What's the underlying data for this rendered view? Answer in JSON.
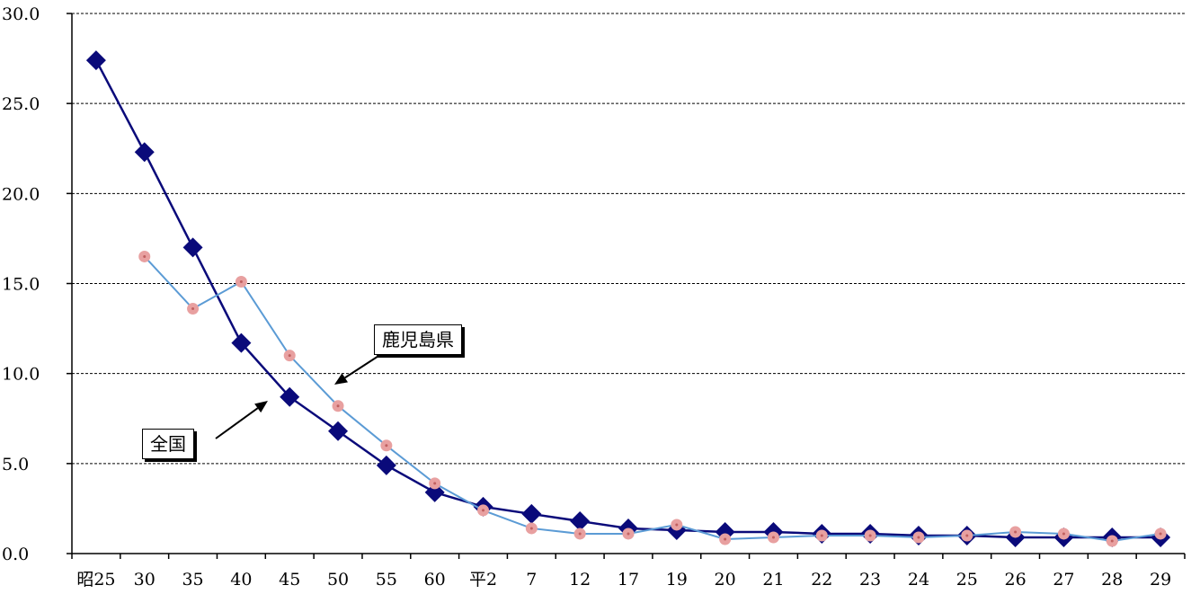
{
  "chart_data": {
    "type": "line",
    "categories": [
      "昭25",
      "30",
      "35",
      "40",
      "45",
      "50",
      "55",
      "60",
      "平2",
      "7",
      "12",
      "17",
      "19",
      "20",
      "21",
      "22",
      "23",
      "24",
      "25",
      "26",
      "27",
      "28",
      "29"
    ],
    "ylim": [
      0,
      30
    ],
    "yticks": [
      "0.0",
      "5.0",
      "10.0",
      "15.0",
      "20.0",
      "25.0",
      "30.0"
    ],
    "grid": "horizontal dashed",
    "series": [
      {
        "name": "全国",
        "color": "#0a0a7a",
        "marker": "diamond",
        "values": [
          27.4,
          22.3,
          17.0,
          11.7,
          8.7,
          6.8,
          4.9,
          3.4,
          2.6,
          2.2,
          1.8,
          1.4,
          1.3,
          1.2,
          1.2,
          1.1,
          1.1,
          1.0,
          1.0,
          0.9,
          0.9,
          0.9,
          0.9
        ]
      },
      {
        "name": "鹿児島県",
        "color": "#5b9bd5",
        "marker": "circle",
        "marker_color": "#e8a0a0",
        "values": [
          null,
          16.5,
          13.6,
          15.1,
          11.0,
          8.2,
          6.0,
          3.9,
          2.4,
          1.4,
          1.1,
          1.1,
          1.6,
          0.8,
          0.9,
          1.0,
          1.0,
          0.9,
          1.0,
          1.2,
          1.1,
          0.7,
          1.1
        ]
      }
    ]
  }
}
